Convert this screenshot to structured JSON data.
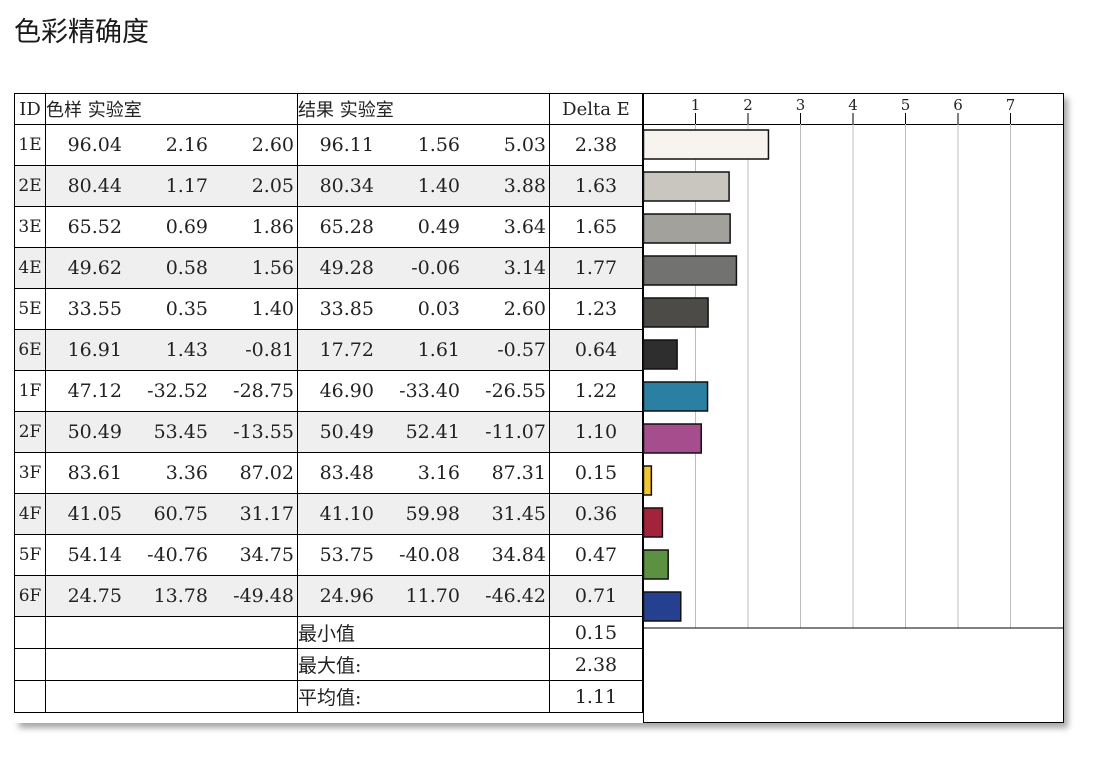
{
  "title": "色彩精确度",
  "table": {
    "headers": {
      "id": "ID",
      "sample": "色样 实验室",
      "result": "结果 实验室",
      "delta": "Delta E"
    },
    "rows": [
      {
        "id": "1E",
        "s1": "96.04",
        "s2": "2.16",
        "s3": "2.60",
        "r1": "96.11",
        "r2": "1.56",
        "r3": "5.03",
        "de": "2.38",
        "shade": false
      },
      {
        "id": "2E",
        "s1": "80.44",
        "s2": "1.17",
        "s3": "2.05",
        "r1": "80.34",
        "r2": "1.40",
        "r3": "3.88",
        "de": "1.63",
        "shade": true
      },
      {
        "id": "3E",
        "s1": "65.52",
        "s2": "0.69",
        "s3": "1.86",
        "r1": "65.28",
        "r2": "0.49",
        "r3": "3.64",
        "de": "1.65",
        "shade": false
      },
      {
        "id": "4E",
        "s1": "49.62",
        "s2": "0.58",
        "s3": "1.56",
        "r1": "49.28",
        "r2": "-0.06",
        "r3": "3.14",
        "de": "1.77",
        "shade": true
      },
      {
        "id": "5E",
        "s1": "33.55",
        "s2": "0.35",
        "s3": "1.40",
        "r1": "33.85",
        "r2": "0.03",
        "r3": "2.60",
        "de": "1.23",
        "shade": false
      },
      {
        "id": "6E",
        "s1": "16.91",
        "s2": "1.43",
        "s3": "-0.81",
        "r1": "17.72",
        "r2": "1.61",
        "r3": "-0.57",
        "de": "0.64",
        "shade": true
      },
      {
        "id": "1F",
        "s1": "47.12",
        "s2": "-32.52",
        "s3": "-28.75",
        "r1": "46.90",
        "r2": "-33.40",
        "r3": "-26.55",
        "de": "1.22",
        "shade": false
      },
      {
        "id": "2F",
        "s1": "50.49",
        "s2": "53.45",
        "s3": "-13.55",
        "r1": "50.49",
        "r2": "52.41",
        "r3": "-11.07",
        "de": "1.10",
        "shade": true
      },
      {
        "id": "3F",
        "s1": "83.61",
        "s2": "3.36",
        "s3": "87.02",
        "r1": "83.48",
        "r2": "3.16",
        "r3": "87.31",
        "de": "0.15",
        "shade": false
      },
      {
        "id": "4F",
        "s1": "41.05",
        "s2": "60.75",
        "s3": "31.17",
        "r1": "41.10",
        "r2": "59.98",
        "r3": "31.45",
        "de": "0.36",
        "shade": true
      },
      {
        "id": "5F",
        "s1": "54.14",
        "s2": "-40.76",
        "s3": "34.75",
        "r1": "53.75",
        "r2": "-40.08",
        "r3": "34.84",
        "de": "0.47",
        "shade": false
      },
      {
        "id": "6F",
        "s1": "24.75",
        "s2": "13.78",
        "s3": "-49.48",
        "r1": "24.96",
        "r2": "11.70",
        "r3": "-46.42",
        "de": "0.71",
        "shade": true
      }
    ],
    "summary": [
      {
        "label": "最小值",
        "value": "0.15"
      },
      {
        "label": "最大值:",
        "value": "2.38"
      },
      {
        "label": "平均值:",
        "value": "1.11"
      }
    ]
  },
  "chart_data": {
    "type": "bar",
    "orientation": "horizontal",
    "categories": [
      "1E",
      "2E",
      "3E",
      "4E",
      "5E",
      "6E",
      "1F",
      "2F",
      "3F",
      "4F",
      "5F",
      "6F"
    ],
    "values": [
      2.38,
      1.63,
      1.65,
      1.77,
      1.23,
      0.64,
      1.22,
      1.1,
      0.15,
      0.36,
      0.47,
      0.71
    ],
    "colors": [
      "#f7f3ee",
      "#c8c6be",
      "#a3a19c",
      "#727270",
      "#4c4b48",
      "#2e2e2e",
      "#2a7fa3",
      "#a54d8d",
      "#f2c531",
      "#a3243a",
      "#5c9142",
      "#24408e"
    ],
    "ticks": [
      "1",
      "2",
      "3",
      "4",
      "5",
      "6",
      "7"
    ],
    "xlim": [
      0,
      8
    ],
    "grid": true
  }
}
